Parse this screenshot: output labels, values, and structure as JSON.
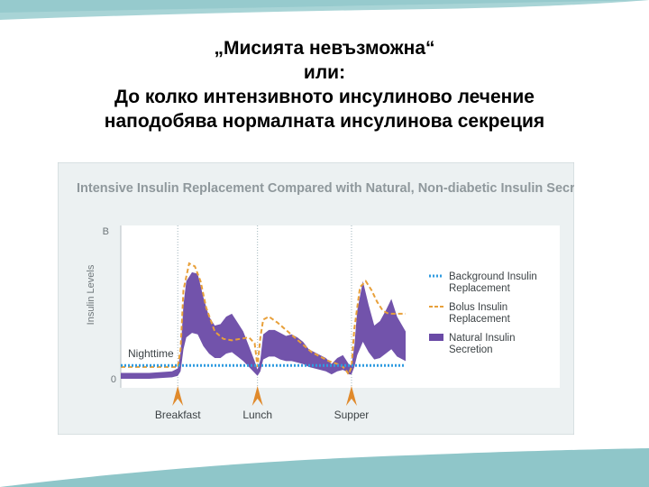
{
  "slide": {
    "title_lines": [
      "„Мисията невъзможна“",
      "или:",
      "До колко интензивното  инсулиново лечение",
      "наподобява нормалната инсулинова секреция"
    ]
  },
  "chart_data": {
    "type": "area",
    "title": "Intensive Insulin Replacement Compared with Natural, Non-diabetic Insulin Secretion",
    "ylabel": "Insulin Levels",
    "y_tick_labels": [
      "0",
      "B"
    ],
    "ylim": [
      0,
      100
    ],
    "x_range": [
      0,
      100
    ],
    "grid": false,
    "legend_placement": "right",
    "period_label": "Nighttime",
    "legend": [
      {
        "name": "Background Insulin Replacement",
        "lines": [
          "Background Insulin",
          "Replacement"
        ],
        "style": "dotted",
        "color": "#2f9be0"
      },
      {
        "name": "Bolus Insulin Replacement",
        "lines": [
          "Bolus Insulin",
          "Replacement"
        ],
        "style": "dashed",
        "color": "#e8a03a"
      },
      {
        "name": "Natural Insulin Secretion",
        "lines": [
          "Natural Insulin",
          "Secretion"
        ],
        "style": "band",
        "color": "#6a4aa6"
      }
    ],
    "meals": [
      {
        "label": "Breakfast",
        "x": 20
      },
      {
        "label": "Lunch",
        "x": 48
      },
      {
        "label": "Supper",
        "x": 81
      }
    ],
    "meal_marker_color": "#e08a2c",
    "series": [
      {
        "name": "Natural Insulin Secretion",
        "x": [
          0,
          10,
          18,
          20,
          21,
          22,
          23,
          25,
          27,
          29,
          31,
          33,
          35,
          37,
          39,
          41,
          43,
          45,
          47,
          48,
          49,
          50,
          52,
          54,
          56,
          58,
          60,
          62,
          64,
          66,
          68,
          70,
          72,
          74,
          76,
          78,
          79,
          80,
          81,
          82,
          83,
          85,
          87,
          89,
          91,
          93,
          95,
          97,
          100
        ],
        "upper": [
          4,
          4,
          5,
          7,
          18,
          50,
          66,
          72,
          71,
          55,
          42,
          36,
          37,
          42,
          44,
          38,
          32,
          22,
          12,
          6,
          13,
          30,
          33,
          33,
          31,
          29,
          30,
          28,
          25,
          20,
          18,
          16,
          14,
          10,
          14,
          16,
          13,
          10,
          9,
          22,
          46,
          66,
          50,
          36,
          39,
          46,
          54,
          42,
          32
        ],
        "lower": [
          0,
          0,
          1,
          2,
          5,
          20,
          28,
          31,
          30,
          22,
          17,
          14,
          14,
          17,
          18,
          15,
          12,
          8,
          4,
          2,
          5,
          13,
          15,
          15,
          13,
          12,
          12,
          11,
          10,
          8,
          7,
          6,
          5,
          3,
          5,
          6,
          5,
          3,
          3,
          8,
          16,
          25,
          18,
          13,
          14,
          17,
          20,
          15,
          12
        ]
      },
      {
        "name": "Bolus Insulin Replacement",
        "x": [
          0,
          10,
          18,
          20,
          21,
          22,
          24,
          26,
          28,
          30,
          33,
          36,
          39,
          42,
          45,
          47,
          48,
          49,
          50,
          52,
          55,
          58,
          61,
          64,
          67,
          70,
          73,
          76,
          78,
          79,
          80,
          81,
          82,
          84,
          86,
          88,
          90,
          92,
          94,
          96,
          100
        ],
        "y": [
          8,
          8,
          8,
          8,
          20,
          60,
          78,
          76,
          66,
          48,
          32,
          27,
          26,
          27,
          28,
          24,
          8,
          28,
          40,
          42,
          38,
          33,
          28,
          23,
          18,
          15,
          12,
          10,
          8,
          6,
          3,
          8,
          34,
          62,
          66,
          60,
          52,
          46,
          44,
          44,
          44
        ]
      },
      {
        "name": "Background Insulin Replacement",
        "x": [
          0,
          100
        ],
        "y": [
          9,
          9
        ]
      }
    ]
  }
}
